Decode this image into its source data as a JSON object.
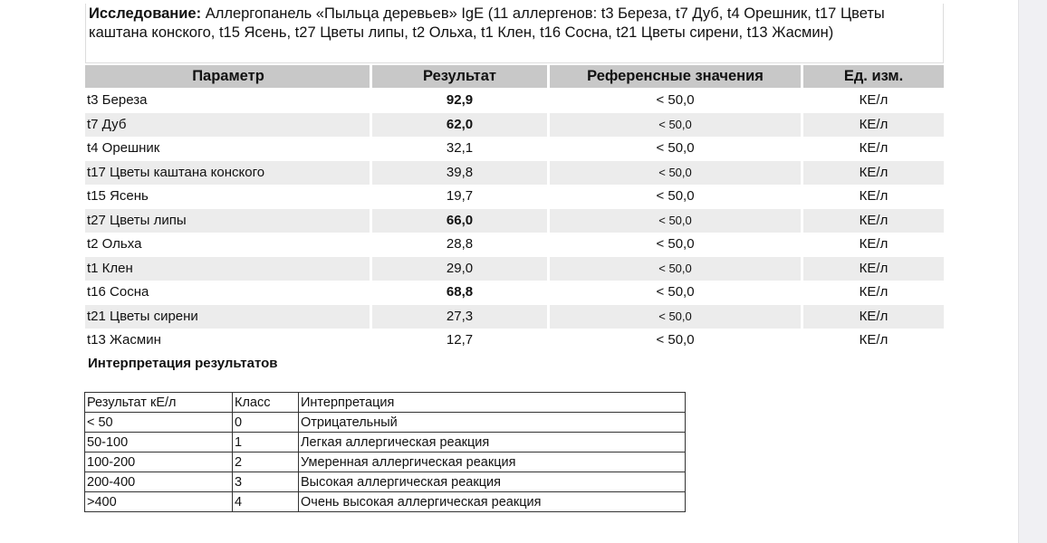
{
  "study": {
    "label": "Исследование:",
    "text": "Аллергопанель «Пыльца деревьев» IgE (11 аллергенов: t3 Береза, t7 Дуб, t4 Орешник, t17 Цветы каштана конского, t15 Ясень, t27 Цветы липы, t2 Ольха, t1 Клен, t16 Сосна, t21 Цветы сирени, t13 Жасмин)"
  },
  "columns": [
    "Параметр",
    "Результат",
    "Референсные значения",
    "Ед. изм."
  ],
  "rows": [
    {
      "param": "t3 Береза",
      "result": "92,9",
      "bold": true,
      "ref": "< 50,0",
      "unit": "КЕ/л"
    },
    {
      "param": "t7 Дуб",
      "result": "62,0",
      "bold": true,
      "ref": "< 50,0",
      "unit": "КЕ/л"
    },
    {
      "param": "t4 Орешник",
      "result": "32,1",
      "bold": false,
      "ref": "< 50,0",
      "unit": "КЕ/л"
    },
    {
      "param": "t17 Цветы каштана конского",
      "result": "39,8",
      "bold": false,
      "ref": "< 50,0",
      "unit": "КЕ/л"
    },
    {
      "param": "t15 Ясень",
      "result": "19,7",
      "bold": false,
      "ref": "< 50,0",
      "unit": "КЕ/л"
    },
    {
      "param": "t27 Цветы липы",
      "result": "66,0",
      "bold": true,
      "ref": "< 50,0",
      "unit": "КЕ/л"
    },
    {
      "param": "t2 Ольха",
      "result": "28,8",
      "bold": false,
      "ref": "< 50,0",
      "unit": "КЕ/л"
    },
    {
      "param": "t1 Клен",
      "result": "29,0",
      "bold": false,
      "ref": "< 50,0",
      "unit": "КЕ/л"
    },
    {
      "param": "t16 Сосна",
      "result": "68,8",
      "bold": true,
      "ref": "< 50,0",
      "unit": "КЕ/л"
    },
    {
      "param": "t21 Цветы сирени",
      "result": "27,3",
      "bold": false,
      "ref": "< 50,0",
      "unit": "КЕ/л"
    },
    {
      "param": "t13 Жасмин",
      "result": "12,7",
      "bold": false,
      "ref": "< 50,0",
      "unit": "КЕ/л"
    }
  ],
  "interpretation": {
    "title": "Интерпретация результатов",
    "header": [
      "Результат кЕ/л",
      "Класс",
      "Интерпретация"
    ],
    "rows": [
      [
        "< 50",
        "0",
        "Отрицательный"
      ],
      [
        "50-100",
        "1",
        "Легкая аллергическая реакция"
      ],
      [
        "100-200",
        "2",
        "Умеренная аллергическая реакция"
      ],
      [
        "200-400",
        "3",
        "Высокая аллергическая реакция"
      ],
      [
        ">400",
        "4",
        "Очень высокая аллергическая реакция"
      ]
    ]
  }
}
